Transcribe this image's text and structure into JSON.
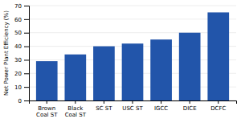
{
  "chart_data": {
    "type": "bar",
    "categories": [
      "Brown\nCoal ST",
      "Black\nCoal ST",
      "SC ST",
      "USC ST",
      "IGCC",
      "DICE",
      "DCFC"
    ],
    "values": [
      29,
      34,
      40,
      42,
      45,
      50,
      65
    ],
    "color": "#2255AA",
    "ylabel": "Net Power Plant Efficiency (%)",
    "ylim": [
      0,
      70
    ],
    "yticks": [
      0,
      10,
      20,
      30,
      40,
      50,
      60,
      70
    ],
    "grid": true
  }
}
